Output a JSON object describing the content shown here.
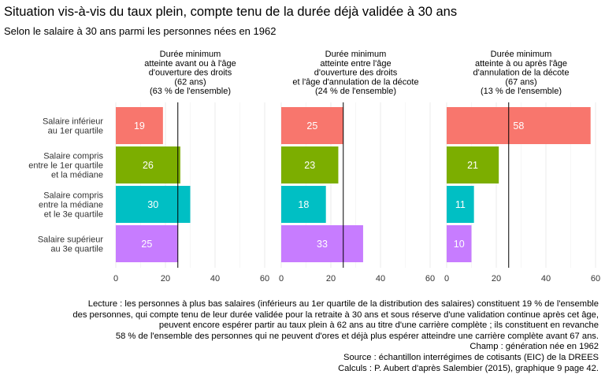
{
  "chart_data": {
    "type": "bar",
    "orientation": "horizontal",
    "title": "Situation vis-à-vis du taux plein, compte tenu de la durée déjà validée à 30 ans",
    "subtitle": "Selon le salaire à 30 ans parmi les personnes nées en 1962",
    "categories": [
      [
        "Salaire inférieur",
        "au 1er quartile"
      ],
      [
        "Salaire compris",
        "entre le 1er quartile",
        "et la médiane"
      ],
      [
        "Salaire compris",
        "entre la médiane",
        "et le 3e quartile"
      ],
      [
        "Salaire supérieur",
        "au 3e quartile"
      ]
    ],
    "category_colors": [
      "#F8766D",
      "#7CAE00",
      "#00BFC4",
      "#C77CFF"
    ],
    "xlim": [
      0,
      60
    ],
    "x_ticks": [
      0,
      20,
      40,
      60
    ],
    "reference_line": 25,
    "grid": true,
    "legend": "none",
    "panels": [
      {
        "header": [
          "Durée minimum",
          "atteinte avant ou à l'âge",
          "d'ouverture des droits",
          "(62 ans)",
          "(63 % de l'ensemble)"
        ],
        "values": [
          19,
          26,
          30,
          25
        ]
      },
      {
        "header": [
          "Durée minimum",
          "atteinte entre l'âge",
          "d'ouverture des droits",
          "et l'âge d'annulation de la décote",
          "(24 % de l'ensemble)"
        ],
        "values": [
          25,
          23,
          18,
          33
        ]
      },
      {
        "header": [
          "Durée minimum",
          "atteinte à ou après l'âge",
          "d'annulation de la décote",
          "(67 ans)",
          "(13 % de l'ensemble)"
        ],
        "values": [
          58,
          21,
          11,
          10
        ]
      }
    ]
  },
  "notes": [
    "Lecture : les personnes à plus bas salaires (inférieurs au 1er quartile de la distribution des salaires) constituent 19 % de l'ensemble",
    "des personnes, qui compte tenu de leur durée validée pour la retraite à 30 ans et sous réserve d'une validation continue après cet âge,",
    "peuvent encore espérer partir au taux plein à 62 ans au titre d'une carrière complète ; ils constituent en revanche",
    "58 % de l'ensemble des personnes qui ne peuvent d'ores et déjà plus espérer atteindre une carrière complète avant 67 ans.",
    "Champ : génération née en 1962",
    "Source : échantillon interrégimes de cotisants (EIC) de la DREES",
    "Calculs : P. Aubert d'après Salembier (2015), graphique 9 page 42."
  ]
}
